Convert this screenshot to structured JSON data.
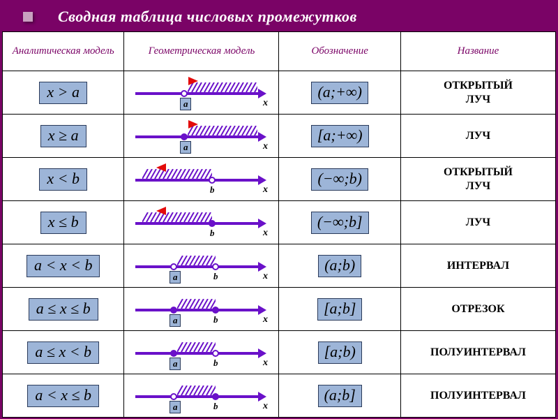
{
  "title": "Сводная таблица числовых промежутков",
  "headers": {
    "analytical": "Аналитическая модель",
    "geometric": "Геометрическая модель",
    "notation": "Обозначение",
    "name": "Название"
  },
  "rows": [
    {
      "analytical": "x > a",
      "notation": "(a;+∞)",
      "name": "ОТКРЫТЫЙ ЛУЧ",
      "line": {
        "points": [
          {
            "pos": 70,
            "kind": "open",
            "label": "a",
            "boxed": true
          }
        ],
        "hatchFrom": 75,
        "hatchTo": 175,
        "arrow": "right",
        "arrowPos": 76
      }
    },
    {
      "analytical": "x ≥ a",
      "notation": "[a;+∞)",
      "name": "ЛУЧ",
      "line": {
        "points": [
          {
            "pos": 70,
            "kind": "closed",
            "label": "a",
            "boxed": true
          }
        ],
        "hatchFrom": 75,
        "hatchTo": 175,
        "arrow": "right",
        "arrowPos": 76
      }
    },
    {
      "analytical": "x < b",
      "notation": "(−∞;b)",
      "name": "ОТКРЫТЫЙ ЛУЧ",
      "line": {
        "points": [
          {
            "pos": 110,
            "kind": "open",
            "label": "b",
            "boxed": false
          }
        ],
        "hatchFrom": 10,
        "hatchTo": 110,
        "arrow": "left",
        "arrowPos": 30
      }
    },
    {
      "analytical": "x ≤ b",
      "notation": "(−∞;b]",
      "name": "ЛУЧ",
      "line": {
        "points": [
          {
            "pos": 110,
            "kind": "closed",
            "label": "b",
            "boxed": false
          }
        ],
        "hatchFrom": 10,
        "hatchTo": 110,
        "arrow": "left",
        "arrowPos": 30
      }
    },
    {
      "analytical": "a < x < b",
      "notation": "(a;b)",
      "name": "ИНТЕРВАЛ",
      "line": {
        "points": [
          {
            "pos": 55,
            "kind": "open",
            "label": "a",
            "boxed": true
          },
          {
            "pos": 115,
            "kind": "open",
            "label": "b",
            "boxed": false
          }
        ],
        "hatchFrom": 60,
        "hatchTo": 115
      }
    },
    {
      "analytical": "a ≤ x ≤ b",
      "notation": "[a;b]",
      "name": "ОТРЕЗОК",
      "line": {
        "points": [
          {
            "pos": 55,
            "kind": "closed",
            "label": "a",
            "boxed": true
          },
          {
            "pos": 115,
            "kind": "closed",
            "label": "b",
            "boxed": false
          }
        ],
        "hatchFrom": 60,
        "hatchTo": 115
      }
    },
    {
      "analytical": "a ≤ x < b",
      "notation": "[a;b)",
      "name": "ПОЛУИНТЕРВАЛ",
      "line": {
        "points": [
          {
            "pos": 55,
            "kind": "closed",
            "label": "a",
            "boxed": true
          },
          {
            "pos": 115,
            "kind": "open",
            "label": "b",
            "boxed": false
          }
        ],
        "hatchFrom": 60,
        "hatchTo": 115
      }
    },
    {
      "analytical": "a < x ≤ b",
      "notation": "(a;b]",
      "name": "ПОЛУИНТЕРВАЛ",
      "line": {
        "points": [
          {
            "pos": 55,
            "kind": "open",
            "label": "a",
            "boxed": true
          },
          {
            "pos": 115,
            "kind": "closed",
            "label": "b",
            "boxed": false
          }
        ],
        "hatchFrom": 60,
        "hatchTo": 115
      }
    }
  ],
  "style": {
    "titleBg": "#7a0366",
    "axisColor": "#6a11c9",
    "boxFill": "#9db5d8",
    "hatchColor": "#6a11c9",
    "redArrow": "#e30b0b"
  }
}
